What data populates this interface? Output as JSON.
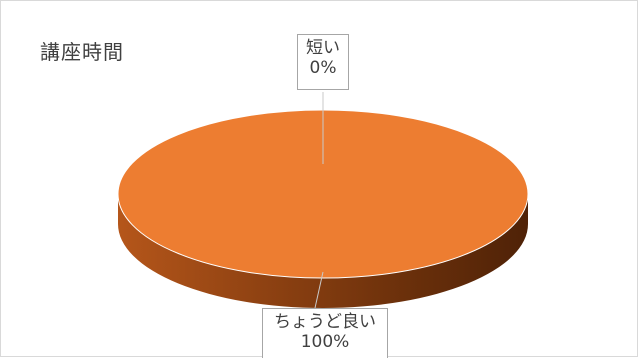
{
  "chart_data": {
    "type": "pie",
    "title": "講座時間",
    "categories": [
      "短い",
      "ちょうど良い"
    ],
    "values": [
      0,
      100
    ],
    "percent_labels": [
      "0%",
      "100%"
    ],
    "style": "3d-pie",
    "colors": {
      "ちょうど良い": "#ED7D31",
      "短い": "#4472C4"
    },
    "legend": "none"
  }
}
